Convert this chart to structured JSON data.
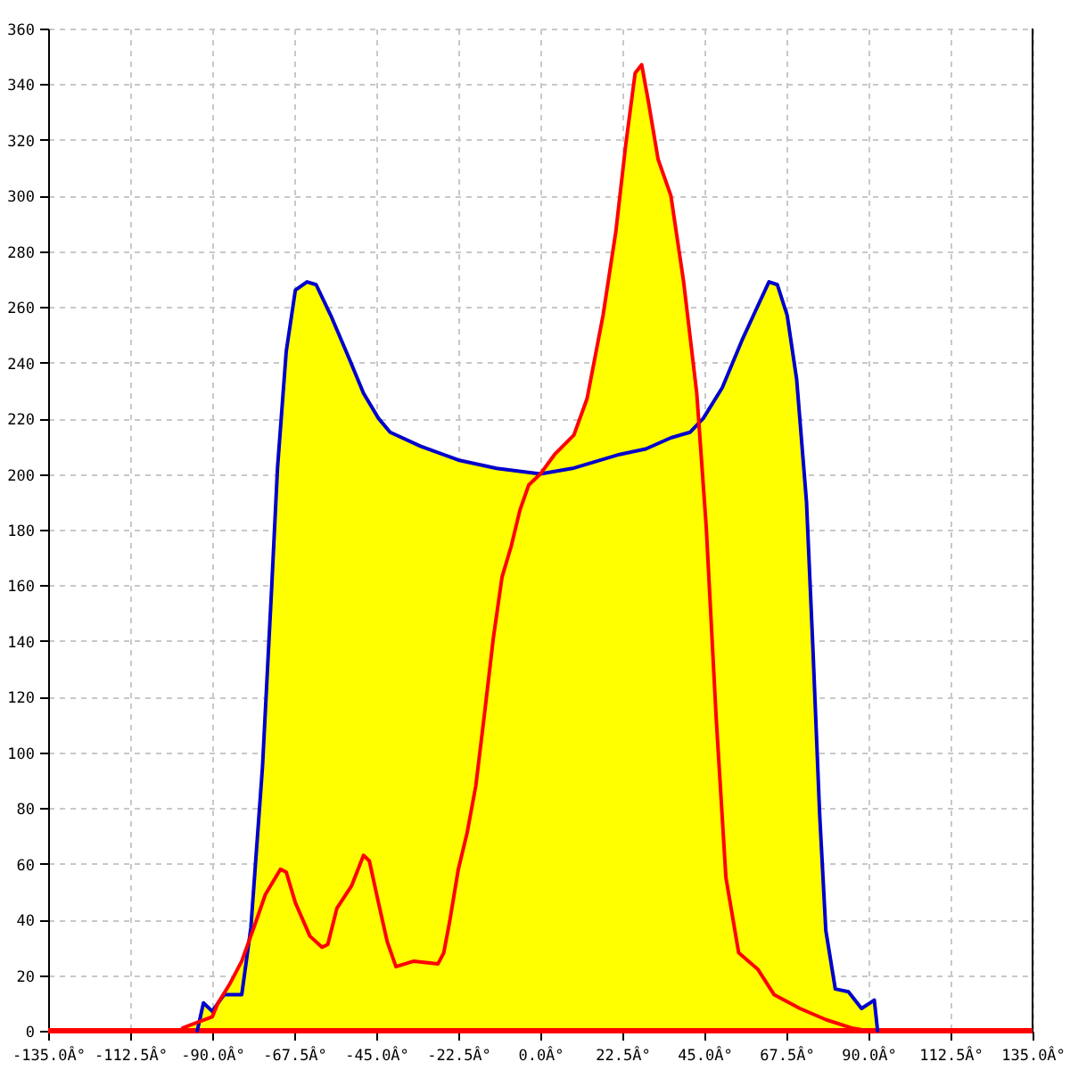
{
  "chart_data": {
    "type": "line",
    "xlim": [
      -135,
      135
    ],
    "ylim": [
      0,
      360
    ],
    "xticks": [
      {
        "value": -135,
        "label": "-135.0Â°"
      },
      {
        "value": -112.5,
        "label": "-112.5Â°"
      },
      {
        "value": -90,
        "label": "-90.0Â°"
      },
      {
        "value": -67.5,
        "label": "-67.5Â°"
      },
      {
        "value": -45,
        "label": "-45.0Â°"
      },
      {
        "value": -22.5,
        "label": "-22.5Â°"
      },
      {
        "value": 0,
        "label": "0.0Â°"
      },
      {
        "value": 22.5,
        "label": "22.5Â°"
      },
      {
        "value": 45,
        "label": "45.0Â°"
      },
      {
        "value": 67.5,
        "label": "67.5Â°"
      },
      {
        "value": 90,
        "label": "90.0Â°"
      },
      {
        "value": 112.5,
        "label": "112.5Â°"
      },
      {
        "value": 135,
        "label": "135.0Â°"
      }
    ],
    "yticks": [
      0,
      20,
      40,
      60,
      80,
      100,
      120,
      140,
      160,
      180,
      200,
      220,
      240,
      260,
      280,
      300,
      320,
      340,
      360
    ],
    "grid": true,
    "ref_lines": [
      {
        "axis": "y",
        "value": 0,
        "color": "#ff0000"
      }
    ],
    "series": [
      {
        "type": "area",
        "color": "#ffff00",
        "x": [
          -98.1,
          -94.1,
          -93.5,
          -92.4,
          -90,
          -88.4,
          -85.1,
          -81.9,
          -79.9,
          -79.4,
          -76.2,
          -73.7,
          -72.1,
          -69.7,
          -67.2,
          -64,
          -61.5,
          -57.5,
          -52.6,
          -48.5,
          -44.4,
          -41.2,
          -32.9,
          -22.5,
          -12,
          0,
          3.9,
          9.2,
          12.8,
          17.2,
          20.7,
          23.4,
          26,
          27.8,
          29.6,
          32.3,
          35.8,
          39.3,
          42.9,
          43.5,
          44.7,
          49.9,
          55.3,
          58.8,
          62.7,
          65,
          67.7,
          70.3,
          73,
          74.8,
          76.6,
          78.3,
          80.9,
          84.5,
          88.1,
          91.6,
          92.5
        ],
        "values": [
          1,
          3,
          3,
          10,
          7,
          10,
          17,
          25,
          32,
          37,
          95,
          159,
          202,
          244,
          266,
          269,
          268,
          257,
          242,
          229,
          220,
          215,
          210,
          205,
          202,
          200,
          207,
          214,
          227,
          257,
          287,
          318,
          344,
          347,
          334,
          313,
          300,
          269,
          229,
          218,
          220,
          231,
          248,
          258,
          269,
          268,
          257,
          234,
          190,
          136,
          78,
          36,
          15,
          14,
          8,
          11,
          0
        ]
      },
      {
        "color": "#0000cc",
        "x": [
          -94.1,
          -92.4,
          -90,
          -86.7,
          -84.3,
          -81.9,
          -79.4,
          -76.2,
          -73.7,
          -72.1,
          -69.7,
          -67.2,
          -64,
          -61.5,
          -57.5,
          -52.6,
          -48.5,
          -44.4,
          -41.2,
          -32.9,
          -22.5,
          -12,
          0,
          8.8,
          21.7,
          28.9,
          35.8,
          41.1,
          44.7,
          49.9,
          55.3,
          58.8,
          62.7,
          65,
          67.7,
          70.3,
          73,
          74.8,
          76.6,
          78.3,
          80.9,
          84.5,
          88.1,
          91.6,
          92.5
        ],
        "values": [
          0,
          10,
          7,
          13,
          13,
          13,
          37,
          95,
          159,
          202,
          244,
          266,
          269,
          268,
          257,
          242,
          229,
          220,
          215,
          210,
          205,
          202,
          200,
          202,
          207,
          209,
          213,
          215,
          220,
          231,
          248,
          258,
          269,
          268,
          257,
          234,
          190,
          136,
          78,
          36,
          15,
          14,
          8,
          11,
          0
        ]
      },
      {
        "color": "#ff0000",
        "x": [
          -98.1,
          -94.1,
          -90,
          -88.4,
          -85.1,
          -81.9,
          -78.6,
          -75.4,
          -71.3,
          -69.7,
          -67.2,
          -63.2,
          -59.9,
          -58.3,
          -55.8,
          -51.8,
          -48.5,
          -46.9,
          -44.4,
          -42,
          -39.6,
          -34.7,
          -28.1,
          -26.5,
          -24.9,
          -22.5,
          -20.1,
          -17.7,
          -15.3,
          -12.9,
          -10.5,
          -8,
          -5.6,
          -3.2,
          0,
          3.9,
          9.2,
          12.8,
          17.2,
          20.7,
          23.4,
          26,
          27.8,
          29.6,
          32.3,
          35.8,
          39.3,
          42.9,
          45.5,
          48.2,
          50.9,
          54.4,
          59.7,
          64.1,
          71.2,
          78.3,
          85.4,
          89.8
        ],
        "values": [
          1,
          3,
          5,
          10,
          17,
          25,
          37,
          49,
          58,
          57,
          46,
          34,
          30,
          31,
          44,
          52,
          63,
          61,
          46,
          32,
          23,
          25,
          24,
          28,
          39,
          58,
          71,
          88,
          114,
          141,
          163,
          174,
          187,
          196,
          200,
          207,
          214,
          227,
          257,
          287,
          318,
          344,
          347,
          334,
          313,
          300,
          269,
          229,
          181,
          113,
          55,
          28,
          22,
          13,
          8,
          4,
          1,
          0
        ]
      }
    ]
  }
}
